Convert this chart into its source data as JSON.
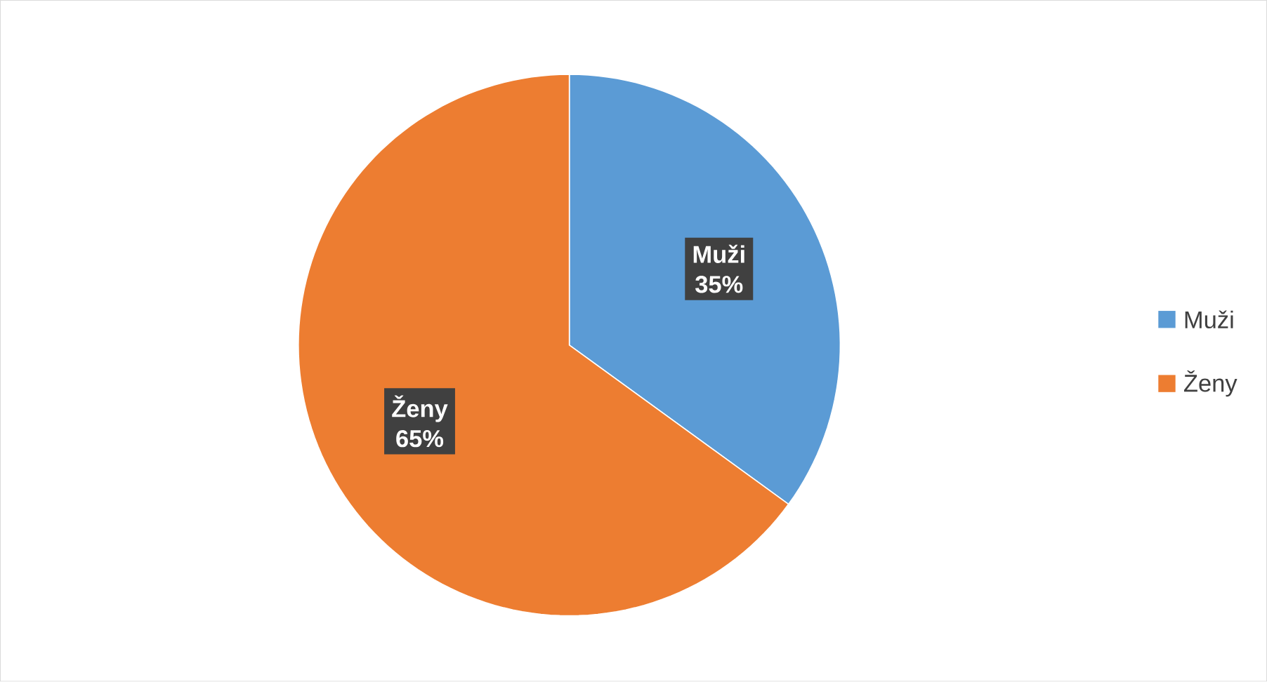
{
  "chart_data": {
    "type": "pie",
    "categories": [
      "Muži",
      "Ženy"
    ],
    "values": [
      35,
      65
    ],
    "value_labels": [
      "35%",
      "65%"
    ],
    "colors": [
      "#5b9bd5",
      "#ed7d31"
    ],
    "legend": "right"
  }
}
